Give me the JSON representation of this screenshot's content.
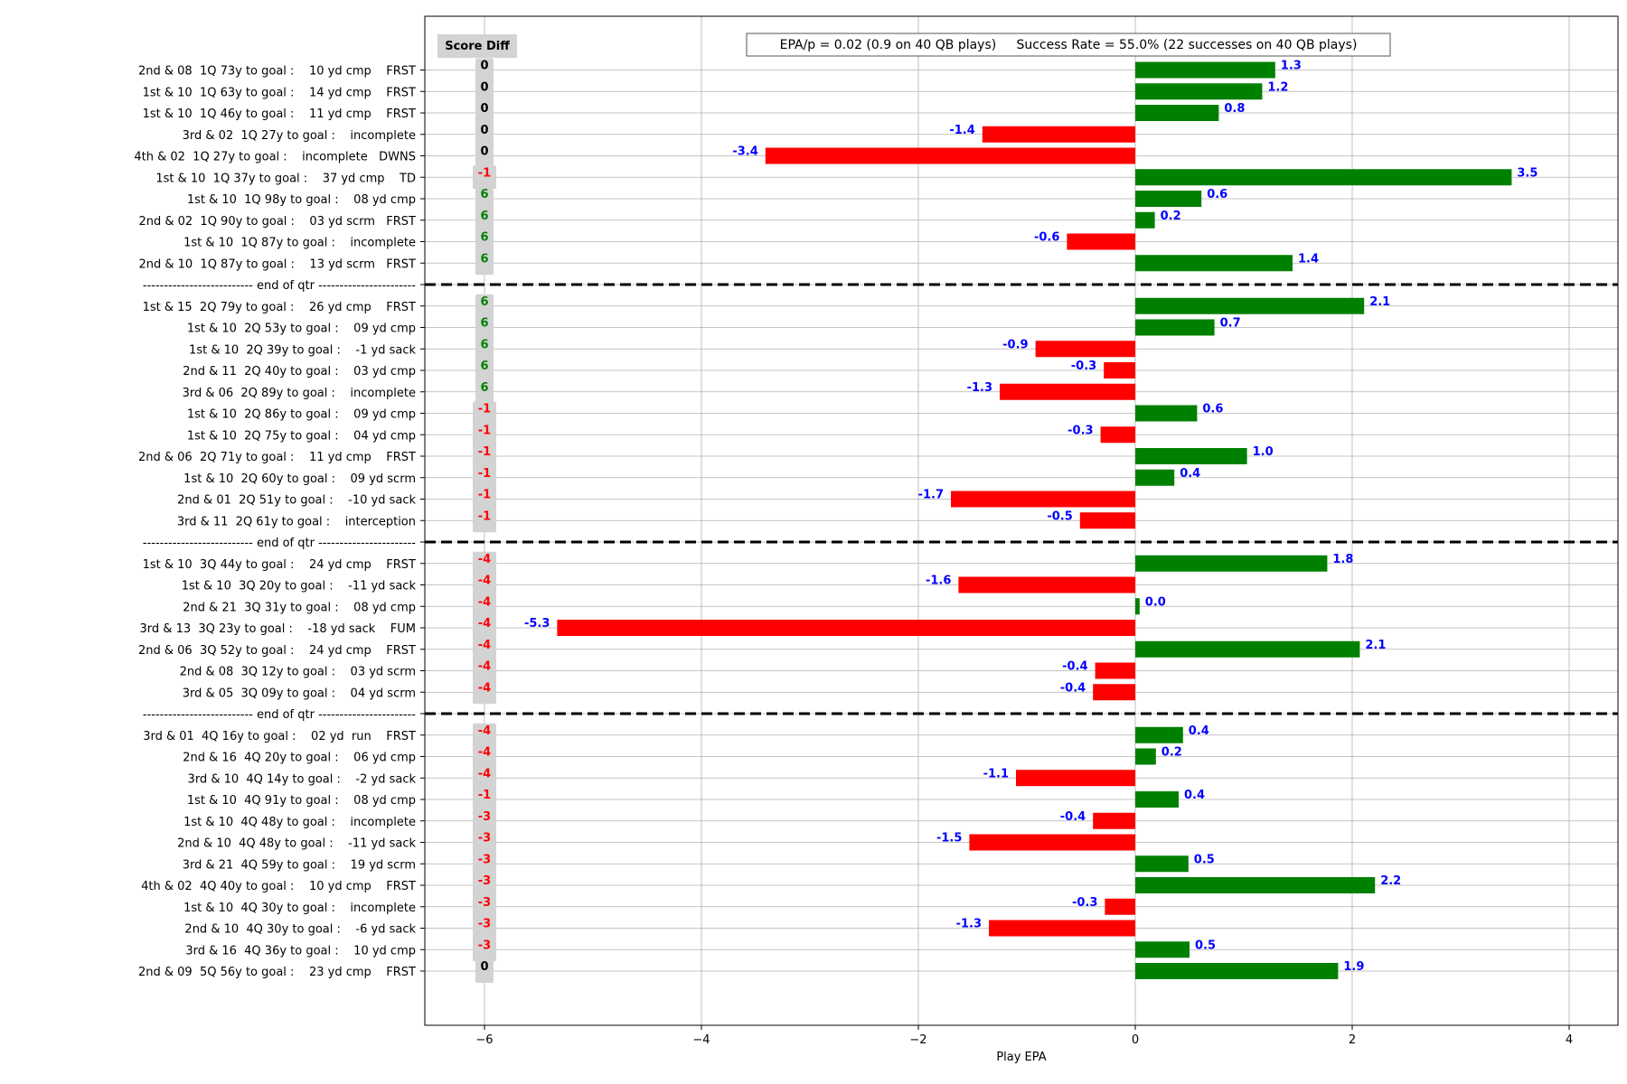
{
  "chart_data": {
    "type": "bar",
    "orientation": "horizontal",
    "xlabel": "Play EPA",
    "xlim": [
      -6.55,
      4.45
    ],
    "xticks": [
      -6,
      -4,
      -2,
      0,
      2,
      4
    ],
    "xtick_labels": [
      "−6",
      "−4",
      "−2",
      "0",
      "2",
      "4"
    ],
    "grid": true,
    "annotation": "EPA/p = 0.02 (0.9 on 40 QB plays)     Success Rate = 55.0% (22 successes on 40 QB plays)",
    "score_diff_header": "Score Diff",
    "score_diff_x": -6,
    "quarter_separator_label": "-------------------------- end of qtr -----------------------",
    "colors": {
      "positive": "#008000",
      "negative": "#ff0000",
      "value_label": "#0000ff",
      "score_zero": "#000000",
      "score_pos": "#008000",
      "score_neg": "#ff0000",
      "score_bg": "#d3d3d3"
    },
    "rows": [
      {
        "label": "2nd & 08  1Q 73y to goal :    10 yd cmp    FRST",
        "epa": 1.29,
        "value_label": "1.3",
        "score_diff": "0"
      },
      {
        "label": "1st & 10  1Q 63y to goal :    14 yd cmp    FRST",
        "epa": 1.17,
        "value_label": "1.2",
        "score_diff": "0"
      },
      {
        "label": "1st & 10  1Q 46y to goal :    11 yd cmp    FRST",
        "epa": 0.77,
        "value_label": "0.8",
        "score_diff": "0"
      },
      {
        "label": "3rd & 02  1Q 27y to goal :    incomplete",
        "epa": -1.41,
        "value_label": "-1.4",
        "score_diff": "0"
      },
      {
        "label": "4th & 02  1Q 27y to goal :    incomplete   DWNS",
        "epa": -3.41,
        "value_label": "-3.4",
        "score_diff": "0"
      },
      {
        "label": "1st & 10  1Q 37y to goal :    37 yd cmp    TD",
        "epa": 3.47,
        "value_label": "3.5",
        "score_diff": "-1"
      },
      {
        "label": "1st & 10  1Q 98y to goal :    08 yd cmp",
        "epa": 0.61,
        "value_label": "0.6",
        "score_diff": "6"
      },
      {
        "label": "2nd & 02  1Q 90y to goal :    03 yd scrm   FRST",
        "epa": 0.18,
        "value_label": "0.2",
        "score_diff": "6"
      },
      {
        "label": "1st & 10  1Q 87y to goal :    incomplete",
        "epa": -0.63,
        "value_label": "-0.6",
        "score_diff": "6"
      },
      {
        "label": "2nd & 10  1Q 87y to goal :    13 yd scrm   FRST",
        "epa": 1.45,
        "value_label": "1.4",
        "score_diff": "6"
      },
      {
        "separator": true
      },
      {
        "label": "1st & 15  2Q 79y to goal :    26 yd cmp    FRST",
        "epa": 2.11,
        "value_label": "2.1",
        "score_diff": "6"
      },
      {
        "label": "1st & 10  2Q 53y to goal :    09 yd cmp",
        "epa": 0.73,
        "value_label": "0.7",
        "score_diff": "6"
      },
      {
        "label": "1st & 10  2Q 39y to goal :    -1 yd sack",
        "epa": -0.92,
        "value_label": "-0.9",
        "score_diff": "6"
      },
      {
        "label": "2nd & 11  2Q 40y to goal :    03 yd cmp",
        "epa": -0.29,
        "value_label": "-0.3",
        "score_diff": "6"
      },
      {
        "label": "3rd & 06  2Q 89y to goal :    incomplete",
        "epa": -1.25,
        "value_label": "-1.3",
        "score_diff": "6"
      },
      {
        "label": "1st & 10  2Q 86y to goal :    09 yd cmp",
        "epa": 0.57,
        "value_label": "0.6",
        "score_diff": "-1"
      },
      {
        "label": "1st & 10  2Q 75y to goal :    04 yd cmp",
        "epa": -0.32,
        "value_label": "-0.3",
        "score_diff": "-1"
      },
      {
        "label": "2nd & 06  2Q 71y to goal :    11 yd cmp    FRST",
        "epa": 1.03,
        "value_label": "1.0",
        "score_diff": "-1"
      },
      {
        "label": "1st & 10  2Q 60y to goal :    09 yd scrm",
        "epa": 0.36,
        "value_label": "0.4",
        "score_diff": "-1"
      },
      {
        "label": "2nd & 01  2Q 51y to goal :    -10 yd sack",
        "epa": -1.7,
        "value_label": "-1.7",
        "score_diff": "-1"
      },
      {
        "label": "3rd & 11  2Q 61y to goal :    interception",
        "epa": -0.51,
        "value_label": "-0.5",
        "score_diff": "-1"
      },
      {
        "separator": true
      },
      {
        "label": "1st & 10  3Q 44y to goal :    24 yd cmp    FRST",
        "epa": 1.77,
        "value_label": "1.8",
        "score_diff": "-4"
      },
      {
        "label": "1st & 10  3Q 20y to goal :    -11 yd sack",
        "epa": -1.63,
        "value_label": "-1.6",
        "score_diff": "-4"
      },
      {
        "label": "2nd & 21  3Q 31y to goal :    08 yd cmp",
        "epa": 0.04,
        "value_label": "0.0",
        "score_diff": "-4"
      },
      {
        "label": "3rd & 13  3Q 23y to goal :    -18 yd sack    FUM",
        "epa": -5.33,
        "value_label": "-5.3",
        "score_diff": "-4"
      },
      {
        "label": "2nd & 06  3Q 52y to goal :    24 yd cmp    FRST",
        "epa": 2.07,
        "value_label": "2.1",
        "score_diff": "-4"
      },
      {
        "label": "2nd & 08  3Q 12y to goal :    03 yd scrm",
        "epa": -0.37,
        "value_label": "-0.4",
        "score_diff": "-4"
      },
      {
        "label": "3rd & 05  3Q 09y to goal :    04 yd scrm",
        "epa": -0.39,
        "value_label": "-0.4",
        "score_diff": "-4"
      },
      {
        "separator": true
      },
      {
        "label": "3rd & 01  4Q 16y to goal :    02 yd  run    FRST",
        "epa": 0.44,
        "value_label": "0.4",
        "score_diff": "-4"
      },
      {
        "label": "2nd & 16  4Q 20y to goal :    06 yd cmp",
        "epa": 0.19,
        "value_label": "0.2",
        "score_diff": "-4"
      },
      {
        "label": "3rd & 10  4Q 14y to goal :    -2 yd sack",
        "epa": -1.1,
        "value_label": "-1.1",
        "score_diff": "-4"
      },
      {
        "label": "1st & 10  4Q 91y to goal :    08 yd cmp",
        "epa": 0.4,
        "value_label": "0.4",
        "score_diff": "-1"
      },
      {
        "label": "1st & 10  4Q 48y to goal :    incomplete",
        "epa": -0.39,
        "value_label": "-0.4",
        "score_diff": "-3"
      },
      {
        "label": "2nd & 10  4Q 48y to goal :    -11 yd sack",
        "epa": -1.53,
        "value_label": "-1.5",
        "score_diff": "-3"
      },
      {
        "label": "3rd & 21  4Q 59y to goal :    19 yd scrm",
        "epa": 0.49,
        "value_label": "0.5",
        "score_diff": "-3"
      },
      {
        "label": "4th & 02  4Q 40y to goal :    10 yd cmp    FRST",
        "epa": 2.21,
        "value_label": "2.2",
        "score_diff": "-3"
      },
      {
        "label": "1st & 10  4Q 30y to goal :    incomplete",
        "epa": -0.28,
        "value_label": "-0.3",
        "score_diff": "-3"
      },
      {
        "label": "2nd & 10  4Q 30y to goal :    -6 yd sack",
        "epa": -1.35,
        "value_label": "-1.3",
        "score_diff": "-3"
      },
      {
        "label": "3rd & 16  4Q 36y to goal :    10 yd cmp",
        "epa": 0.5,
        "value_label": "0.5",
        "score_diff": "-3"
      },
      {
        "label": "2nd & 09  5Q 56y to goal :    23 yd cmp    FRST",
        "epa": 1.87,
        "value_label": "1.9",
        "score_diff": "0"
      }
    ]
  }
}
